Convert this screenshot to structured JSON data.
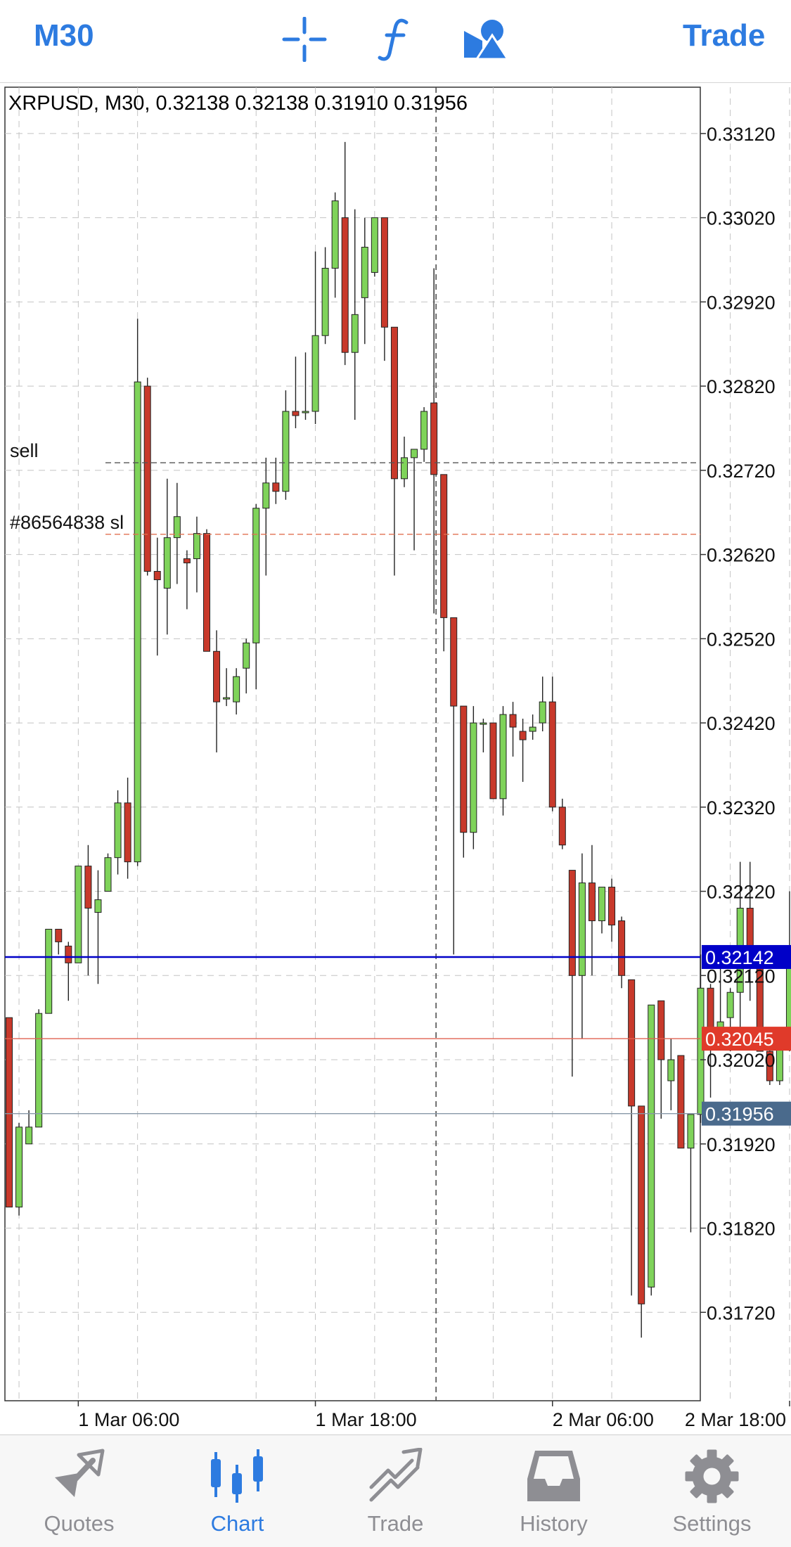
{
  "toolbar": {
    "timeframe": "M30",
    "trade_label": "Trade",
    "icons": [
      "crosshair-icon",
      "function-icon",
      "objects-icon"
    ]
  },
  "chart_data": {
    "type": "candlestick",
    "title": "XRPUSD, M30, 0.32138 0.32138 0.31910 0.31956",
    "symbol": "XRPUSD",
    "timeframe": "M30",
    "ylim": [
      0.31615,
      0.33175
    ],
    "y_ticks": [
      "0.33120",
      "0.33020",
      "0.32920",
      "0.32820",
      "0.32720",
      "0.32620",
      "0.32520",
      "0.32420",
      "0.32320",
      "0.32220",
      "0.32120",
      "0.32020",
      "0.31920",
      "0.31820",
      "0.31720"
    ],
    "x_ticks": [
      {
        "label": "1 Mar 06:00",
        "index": 7
      },
      {
        "label": "1 Mar 18:00",
        "index": 31
      },
      {
        "label": "2 Mar 06:00",
        "index": 55
      },
      {
        "label": "2 Mar 18:00",
        "index": 79
      }
    ],
    "crosshair_index": 43,
    "bull_color": "#7fd35a",
    "bear_color": "#c8392b",
    "candles": [
      {
        "o": 0.3207,
        "h": 0.3207,
        "l": 0.31845,
        "c": 0.31845
      },
      {
        "o": 0.31845,
        "h": 0.31945,
        "l": 0.31835,
        "c": 0.3194
      },
      {
        "o": 0.3192,
        "h": 0.3196,
        "l": 0.3192,
        "c": 0.3194
      },
      {
        "o": 0.3194,
        "h": 0.3208,
        "l": 0.3194,
        "c": 0.32075
      },
      {
        "o": 0.32075,
        "h": 0.32175,
        "l": 0.32075,
        "c": 0.32175
      },
      {
        "o": 0.32175,
        "h": 0.32175,
        "l": 0.32145,
        "c": 0.3216
      },
      {
        "o": 0.32155,
        "h": 0.3216,
        "l": 0.3209,
        "c": 0.32135
      },
      {
        "o": 0.32135,
        "h": 0.3225,
        "l": 0.32135,
        "c": 0.3225
      },
      {
        "o": 0.3225,
        "h": 0.32275,
        "l": 0.3212,
        "c": 0.322
      },
      {
        "o": 0.32195,
        "h": 0.32245,
        "l": 0.3211,
        "c": 0.3221
      },
      {
        "o": 0.3222,
        "h": 0.32265,
        "l": 0.3222,
        "c": 0.3226
      },
      {
        "o": 0.3226,
        "h": 0.3234,
        "l": 0.3224,
        "c": 0.32325
      },
      {
        "o": 0.32325,
        "h": 0.32355,
        "l": 0.32235,
        "c": 0.32255
      },
      {
        "o": 0.32255,
        "h": 0.329,
        "l": 0.3225,
        "c": 0.32825
      },
      {
        "o": 0.3282,
        "h": 0.3283,
        "l": 0.32595,
        "c": 0.326
      },
      {
        "o": 0.326,
        "h": 0.3264,
        "l": 0.325,
        "c": 0.3259
      },
      {
        "o": 0.3258,
        "h": 0.3271,
        "l": 0.32525,
        "c": 0.3264
      },
      {
        "o": 0.3264,
        "h": 0.32705,
        "l": 0.32585,
        "c": 0.32665
      },
      {
        "o": 0.32615,
        "h": 0.32625,
        "l": 0.32555,
        "c": 0.3261
      },
      {
        "o": 0.32615,
        "h": 0.32665,
        "l": 0.32575,
        "c": 0.32645
      },
      {
        "o": 0.32645,
        "h": 0.3265,
        "l": 0.32505,
        "c": 0.32505
      },
      {
        "o": 0.32505,
        "h": 0.3253,
        "l": 0.32385,
        "c": 0.32445
      },
      {
        "o": 0.3245,
        "h": 0.32485,
        "l": 0.3244,
        "c": 0.3245
      },
      {
        "o": 0.32445,
        "h": 0.32485,
        "l": 0.3243,
        "c": 0.32475
      },
      {
        "o": 0.32485,
        "h": 0.3252,
        "l": 0.32455,
        "c": 0.32515
      },
      {
        "o": 0.32515,
        "h": 0.3268,
        "l": 0.3246,
        "c": 0.32675
      },
      {
        "o": 0.32675,
        "h": 0.32735,
        "l": 0.32595,
        "c": 0.32705
      },
      {
        "o": 0.32705,
        "h": 0.32735,
        "l": 0.3268,
        "c": 0.32695
      },
      {
        "o": 0.32695,
        "h": 0.32815,
        "l": 0.32685,
        "c": 0.3279
      },
      {
        "o": 0.3279,
        "h": 0.32855,
        "l": 0.3277,
        "c": 0.32785
      },
      {
        "o": 0.3279,
        "h": 0.3286,
        "l": 0.3278,
        "c": 0.3279
      },
      {
        "o": 0.3279,
        "h": 0.3298,
        "l": 0.32775,
        "c": 0.3288
      },
      {
        "o": 0.3288,
        "h": 0.32985,
        "l": 0.3287,
        "c": 0.3296
      },
      {
        "o": 0.3296,
        "h": 0.3305,
        "l": 0.32925,
        "c": 0.3304
      },
      {
        "o": 0.3302,
        "h": 0.3311,
        "l": 0.32845,
        "c": 0.3286
      },
      {
        "o": 0.3286,
        "h": 0.3303,
        "l": 0.3278,
        "c": 0.32905
      },
      {
        "o": 0.32925,
        "h": 0.3302,
        "l": 0.3287,
        "c": 0.32985
      },
      {
        "o": 0.32955,
        "h": 0.3302,
        "l": 0.3295,
        "c": 0.3302
      },
      {
        "o": 0.3302,
        "h": 0.3302,
        "l": 0.3285,
        "c": 0.3289
      },
      {
        "o": 0.3289,
        "h": 0.3289,
        "l": 0.32595,
        "c": 0.3271
      },
      {
        "o": 0.3271,
        "h": 0.3276,
        "l": 0.327,
        "c": 0.32735
      },
      {
        "o": 0.32735,
        "h": 0.32745,
        "l": 0.32625,
        "c": 0.32745
      },
      {
        "o": 0.32745,
        "h": 0.32795,
        "l": 0.3273,
        "c": 0.3279
      },
      {
        "o": 0.328,
        "h": 0.3296,
        "l": 0.3255,
        "c": 0.32715
      },
      {
        "o": 0.32715,
        "h": 0.32715,
        "l": 0.32505,
        "c": 0.32545
      },
      {
        "o": 0.32545,
        "h": 0.32545,
        "l": 0.32145,
        "c": 0.3244
      },
      {
        "o": 0.3244,
        "h": 0.3244,
        "l": 0.3226,
        "c": 0.3229
      },
      {
        "o": 0.3229,
        "h": 0.3244,
        "l": 0.3227,
        "c": 0.3242
      },
      {
        "o": 0.3242,
        "h": 0.32425,
        "l": 0.32385,
        "c": 0.3242
      },
      {
        "o": 0.3242,
        "h": 0.3242,
        "l": 0.3233,
        "c": 0.3233
      },
      {
        "o": 0.3233,
        "h": 0.3244,
        "l": 0.3231,
        "c": 0.3243
      },
      {
        "o": 0.3243,
        "h": 0.32445,
        "l": 0.3238,
        "c": 0.32415
      },
      {
        "o": 0.3241,
        "h": 0.32425,
        "l": 0.3235,
        "c": 0.324
      },
      {
        "o": 0.3241,
        "h": 0.3243,
        "l": 0.324,
        "c": 0.32415
      },
      {
        "o": 0.3242,
        "h": 0.32475,
        "l": 0.3241,
        "c": 0.32445
      },
      {
        "o": 0.32445,
        "h": 0.32475,
        "l": 0.32315,
        "c": 0.3232
      },
      {
        "o": 0.3232,
        "h": 0.3233,
        "l": 0.3227,
        "c": 0.32275
      },
      {
        "o": 0.32245,
        "h": 0.32245,
        "l": 0.32,
        "c": 0.3212
      },
      {
        "o": 0.3212,
        "h": 0.32265,
        "l": 0.32045,
        "c": 0.3223
      },
      {
        "o": 0.3223,
        "h": 0.32275,
        "l": 0.3212,
        "c": 0.32185
      },
      {
        "o": 0.32185,
        "h": 0.32225,
        "l": 0.3217,
        "c": 0.32225
      },
      {
        "o": 0.32225,
        "h": 0.32235,
        "l": 0.3216,
        "c": 0.3218
      },
      {
        "o": 0.32185,
        "h": 0.3219,
        "l": 0.32105,
        "c": 0.3212
      },
      {
        "o": 0.32115,
        "h": 0.32115,
        "l": 0.3174,
        "c": 0.31965
      },
      {
        "o": 0.31965,
        "h": 0.31965,
        "l": 0.3169,
        "c": 0.3173
      },
      {
        "o": 0.3175,
        "h": 0.32085,
        "l": 0.3174,
        "c": 0.32085
      },
      {
        "o": 0.3209,
        "h": 0.3209,
        "l": 0.3195,
        "c": 0.3202
      },
      {
        "o": 0.31995,
        "h": 0.32045,
        "l": 0.3196,
        "c": 0.3202
      },
      {
        "o": 0.32025,
        "h": 0.32025,
        "l": 0.31915,
        "c": 0.31915
      },
      {
        "o": 0.31915,
        "h": 0.31945,
        "l": 0.31815,
        "c": 0.31955
      },
      {
        "o": 0.31955,
        "h": 0.32145,
        "l": 0.31945,
        "c": 0.32105
      },
      {
        "o": 0.32105,
        "h": 0.3211,
        "l": 0.31975,
        "c": 0.32045
      },
      {
        "o": 0.32045,
        "h": 0.3214,
        "l": 0.3204,
        "c": 0.32065
      },
      {
        "o": 0.3207,
        "h": 0.32105,
        "l": 0.3203,
        "c": 0.321
      },
      {
        "o": 0.321,
        "h": 0.32255,
        "l": 0.3204,
        "c": 0.322
      },
      {
        "o": 0.322,
        "h": 0.32255,
        "l": 0.3209,
        "c": 0.32145
      },
      {
        "o": 0.3214,
        "h": 0.32145,
        "l": 0.3203,
        "c": 0.3203
      },
      {
        "o": 0.3203,
        "h": 0.3204,
        "l": 0.3199,
        "c": 0.31995
      },
      {
        "o": 0.31995,
        "h": 0.3204,
        "l": 0.3199,
        "c": 0.3204
      },
      {
        "o": 0.3204,
        "h": 0.3222,
        "l": 0.3203,
        "c": 0.32135
      },
      {
        "o": 0.32138,
        "h": 0.32138,
        "l": 0.3191,
        "c": 0.31956
      }
    ],
    "price_lines": [
      {
        "name": "sell",
        "price": 0.32729,
        "color": "#555555",
        "style": "dashed",
        "label": "sell"
      },
      {
        "name": "sl",
        "price": 0.32644,
        "color": "#e07050",
        "style": "dashed",
        "label": "#86564838 sl"
      },
      {
        "name": "level",
        "price": 0.32142,
        "color": "#0000c8",
        "style": "solid",
        "label": "0.32142",
        "label_bg": "#0000c8"
      },
      {
        "name": "ask",
        "price": 0.32045,
        "color": "#e06050",
        "style": "solid",
        "label": "0.32045",
        "label_bg": "#e03a2a"
      },
      {
        "name": "bid",
        "price": 0.31956,
        "color": "#8898a8",
        "style": "solid",
        "label": "0.31956",
        "label_bg": "#4a6a8c"
      }
    ]
  },
  "tabs": [
    {
      "label": "Quotes",
      "icon": "quotes-icon",
      "active": false
    },
    {
      "label": "Chart",
      "icon": "chart-icon",
      "active": true
    },
    {
      "label": "Trade",
      "icon": "trade-icon",
      "active": false
    },
    {
      "label": "History",
      "icon": "history-icon",
      "active": false
    },
    {
      "label": "Settings",
      "icon": "settings-icon",
      "active": false
    }
  ]
}
